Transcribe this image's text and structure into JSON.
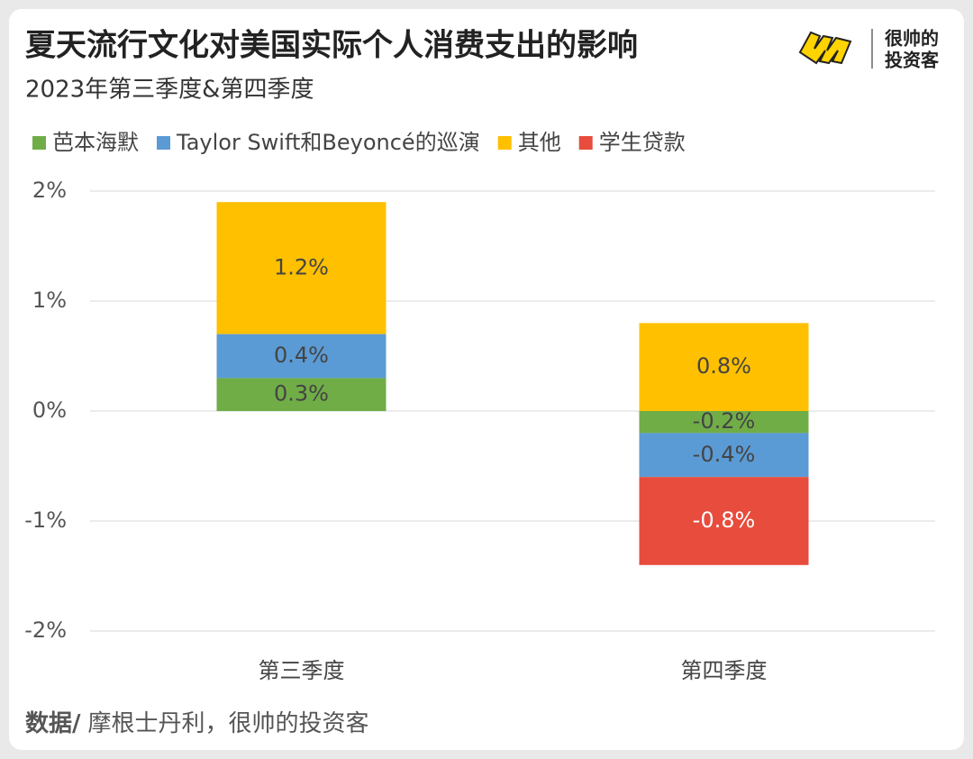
{
  "chart_data": {
    "type": "stacked-bar",
    "title": "夏天流行文化对美国实际个人消费支出的影响",
    "subtitle": "2023年第三季度&第四季度",
    "brand": [
      "很帅的",
      "投资客"
    ],
    "source": {
      "label": "数据/",
      "text": "摩根士丹利，很帅的投资客"
    },
    "categories": [
      "第三季度",
      "第四季度"
    ],
    "series": [
      {
        "name": "芭本海默",
        "color": "#70ad47",
        "values": [
          0.3,
          -0.2
        ],
        "value_labels": [
          "0.3%",
          "-0.2%"
        ]
      },
      {
        "name": "Taylor Swift和Beyoncé的巡演",
        "color": "#5b9bd5",
        "values": [
          0.4,
          -0.4
        ],
        "value_labels": [
          "0.4%",
          "-0.4%"
        ]
      },
      {
        "name": "其他",
        "color": "#ffc000",
        "values": [
          1.2,
          0.8
        ],
        "value_labels": [
          "1.2%",
          "0.8%"
        ]
      },
      {
        "name": "学生贷款",
        "color": "#e74c3c",
        "values": [
          null,
          -0.8
        ],
        "value_labels": [
          null,
          "-0.8%"
        ]
      }
    ],
    "ylim": [
      -2,
      2
    ],
    "yticks": [
      {
        "value": 2,
        "label": "2%"
      },
      {
        "value": 1,
        "label": "1%"
      },
      {
        "value": 0,
        "label": "0%"
      },
      {
        "value": -1,
        "label": "-1%"
      },
      {
        "value": -2,
        "label": "-2%"
      }
    ],
    "grid": true
  }
}
